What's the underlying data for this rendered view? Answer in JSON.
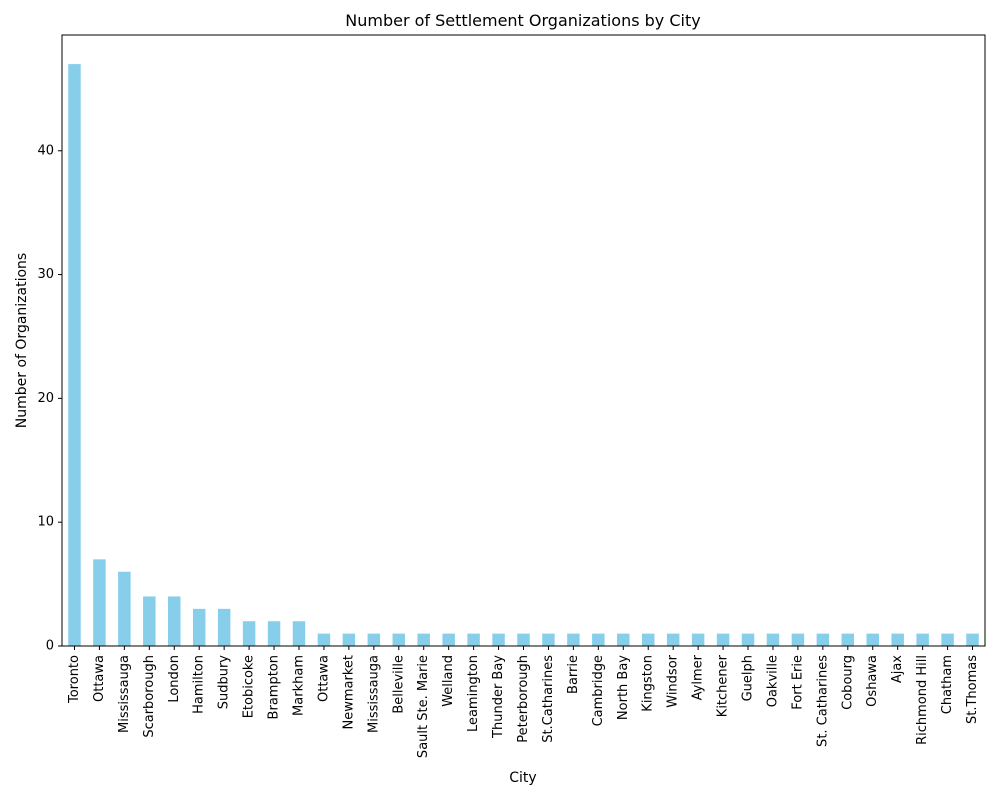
{
  "chart_data": {
    "type": "bar",
    "title": "Number of Settlement Organizations by City",
    "xlabel": "City",
    "ylabel": "Number of Organizations",
    "ylim": [
      0,
      49.35
    ],
    "yticks": [
      0,
      10,
      20,
      30,
      40
    ],
    "grid": false,
    "bar_color": "#87CEEB",
    "categories": [
      "Toronto",
      "Ottawa",
      "Mississauga",
      "Scarborough",
      "London",
      "Hamilton",
      "Sudbury",
      "Etobicoke",
      "Brampton",
      "Markham",
      "Ottawa ",
      "Newmarket",
      "Mississauga ",
      "Belleville",
      "Sault Ste. Marie",
      "Welland",
      "Leamington",
      "Thunder Bay",
      "Peterborough",
      "St.Catharines",
      "Barrie",
      "Cambridge",
      "North Bay",
      "Kingston",
      "Windsor",
      "Aylmer",
      "Kitchener",
      "Guelph",
      "Oakville",
      "Fort Erie",
      "St. Catharines",
      "Cobourg",
      "Oshawa",
      "Ajax",
      "Richmond Hill",
      "Chatham",
      "St.Thomas"
    ],
    "values": [
      47,
      7,
      6,
      4,
      4,
      3,
      3,
      2,
      2,
      2,
      1,
      1,
      1,
      1,
      1,
      1,
      1,
      1,
      1,
      1,
      1,
      1,
      1,
      1,
      1,
      1,
      1,
      1,
      1,
      1,
      1,
      1,
      1,
      1,
      1,
      1,
      1
    ]
  }
}
